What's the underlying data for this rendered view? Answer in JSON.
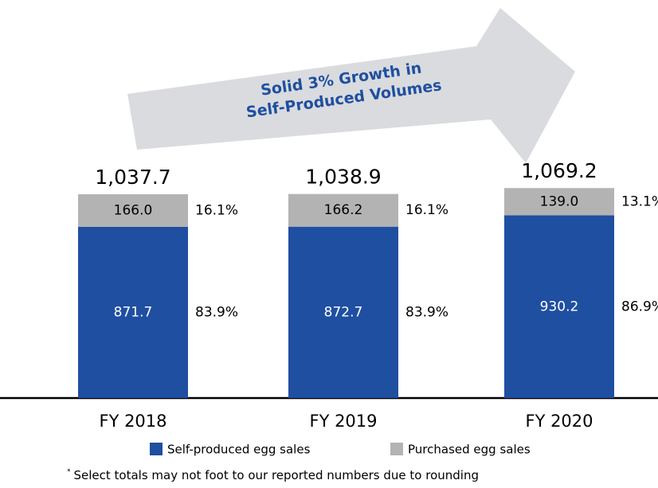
{
  "chart_data": {
    "type": "stacked_bar",
    "categories": [
      "FY 2018",
      "FY 2019",
      "FY 2020"
    ],
    "series": [
      {
        "name": "Self-produced egg sales",
        "color": "#1f4fa0",
        "values": [
          871.7,
          872.7,
          930.2
        ],
        "value_labels": [
          "871.7",
          "872.7",
          "930.2"
        ],
        "share_labels": [
          "83.9%",
          "83.9%",
          "86.9%"
        ]
      },
      {
        "name": "Purchased egg sales",
        "color": "#b3b3b3",
        "values": [
          166.0,
          166.2,
          139.0
        ],
        "value_labels": [
          "166.0",
          "166.2",
          "139.0"
        ],
        "share_labels": [
          "16.1%",
          "16.1%",
          "13.1%"
        ]
      }
    ],
    "total_labels": [
      "1,037.7",
      "1,038.9",
      "1,069.2"
    ],
    "ylim": [
      0,
      2000
    ],
    "annotation": [
      "Solid 3% Growth in",
      "Self-Produced Volumes"
    ],
    "footnote_mark": "*",
    "footnote": "Select totals may not foot to our reported numbers due to rounding"
  }
}
